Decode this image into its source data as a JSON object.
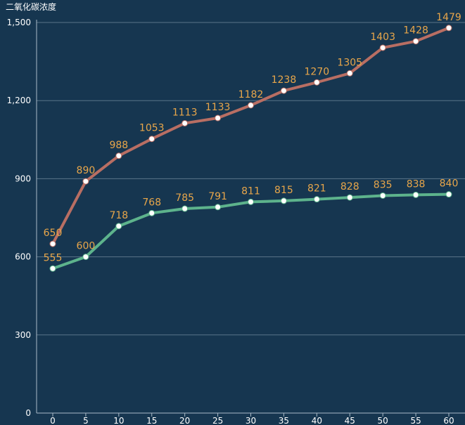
{
  "chart_data": {
    "type": "line",
    "ylabel": "二氧化碳浓度",
    "xlabel": "",
    "x": [
      0,
      5,
      10,
      15,
      20,
      25,
      30,
      35,
      40,
      45,
      50,
      55,
      60
    ],
    "ylim": [
      0,
      1500
    ],
    "yticks": [
      "0",
      "300",
      "600",
      "900",
      "1,200",
      "1,500"
    ],
    "grid": true,
    "series": [
      {
        "color": "#b86e63",
        "values": [
          650,
          890,
          988,
          1053,
          1113,
          1133,
          1182,
          1238,
          1270,
          1305,
          1403,
          1428,
          1479
        ]
      },
      {
        "color": "#5db38c",
        "values": [
          555,
          600,
          718,
          768,
          785,
          791,
          811,
          815,
          821,
          828,
          835,
          838,
          840
        ]
      }
    ]
  }
}
